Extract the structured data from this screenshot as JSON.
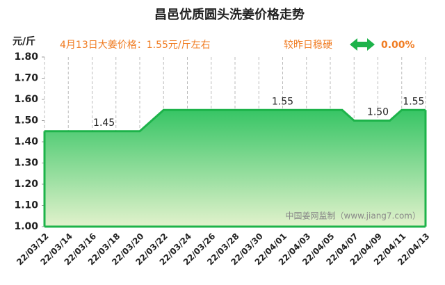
{
  "chart_data": {
    "type": "area",
    "title": "昌邑优质圆头洗姜价格走势",
    "y_label": "元/斤",
    "headline": "4月13日大姜价格：1.55元/斤左右",
    "change_label": "较昨日稳硬",
    "change_value": "0.00%",
    "watermark": "中国姜网监制（www.jiang7.com）",
    "color": "#1db34a",
    "grid": true,
    "x": [
      "22/03/12",
      null,
      "22/03/14",
      null,
      "22/03/16",
      null,
      "22/03/18",
      null,
      "22/03/20",
      null,
      "22/03/22",
      null,
      "22/03/24",
      null,
      "22/03/26",
      null,
      "22/03/28",
      null,
      "22/03/30",
      null,
      "22/04/01",
      null,
      "22/04/03",
      null,
      "22/04/05",
      null,
      "22/04/07",
      null,
      "22/04/09",
      null,
      "22/04/11",
      null,
      "22/04/13"
    ],
    "values": [
      1.45,
      1.45,
      1.45,
      1.45,
      1.45,
      1.45,
      1.45,
      1.45,
      1.45,
      1.5,
      1.55,
      1.55,
      1.55,
      1.55,
      1.55,
      1.55,
      1.55,
      1.55,
      1.55,
      1.55,
      1.55,
      1.55,
      1.55,
      1.55,
      1.55,
      1.55,
      1.5,
      1.5,
      1.5,
      1.5,
      1.55,
      1.55,
      1.55
    ],
    "value_labels": [
      null,
      null,
      null,
      null,
      null,
      "1.45",
      null,
      null,
      null,
      null,
      null,
      null,
      null,
      null,
      null,
      null,
      null,
      null,
      null,
      null,
      "1.55",
      null,
      null,
      null,
      null,
      null,
      null,
      null,
      "1.50",
      null,
      null,
      "1.55",
      null
    ],
    "ylim": [
      1.0,
      1.8
    ],
    "yticks": [
      {
        "value": 1.0,
        "label": "1.00"
      },
      {
        "value": 1.1,
        "label": "1.10"
      },
      {
        "value": 1.2,
        "label": "1.20"
      },
      {
        "value": 1.3,
        "label": "1.30"
      },
      {
        "value": 1.4,
        "label": "1.40"
      },
      {
        "value": 1.5,
        "label": "1.50"
      },
      {
        "value": 1.6,
        "label": "1.60"
      },
      {
        "value": 1.7,
        "label": "1.70"
      },
      {
        "value": 1.8,
        "label": "1.80"
      }
    ]
  }
}
